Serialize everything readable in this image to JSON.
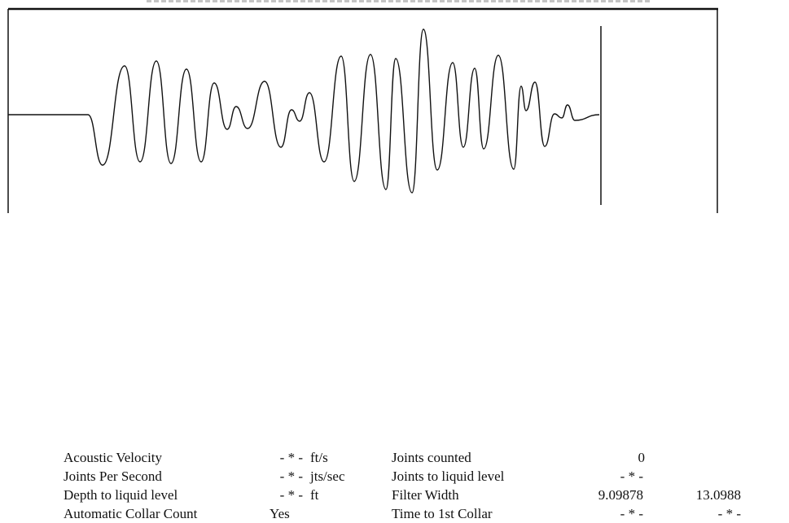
{
  "rows": [
    {
      "label1": "Acoustic Velocity",
      "value1": "- * -",
      "unit1": "ft/s",
      "label2": "Joints counted",
      "value2": "0",
      "value3": ""
    },
    {
      "label1": "Joints Per Second",
      "value1": "- * -",
      "unit1": "jts/sec",
      "label2": "Joints to liquid level",
      "value2": "- * -",
      "value3": ""
    },
    {
      "label1": "Depth to liquid level",
      "value1": "- * -",
      "unit1": "ft",
      "label2": "Filter Width",
      "value2": "9.09878",
      "value3": "13.0988"
    },
    {
      "label1": "Automatic Collar Count",
      "value1": "Yes",
      "unit1": "",
      "label2": "Time to 1st Collar",
      "value2": "- * -",
      "value3": "- * -"
    }
  ],
  "plot_colors": {
    "trace": "#111111",
    "frame": "#111111"
  }
}
